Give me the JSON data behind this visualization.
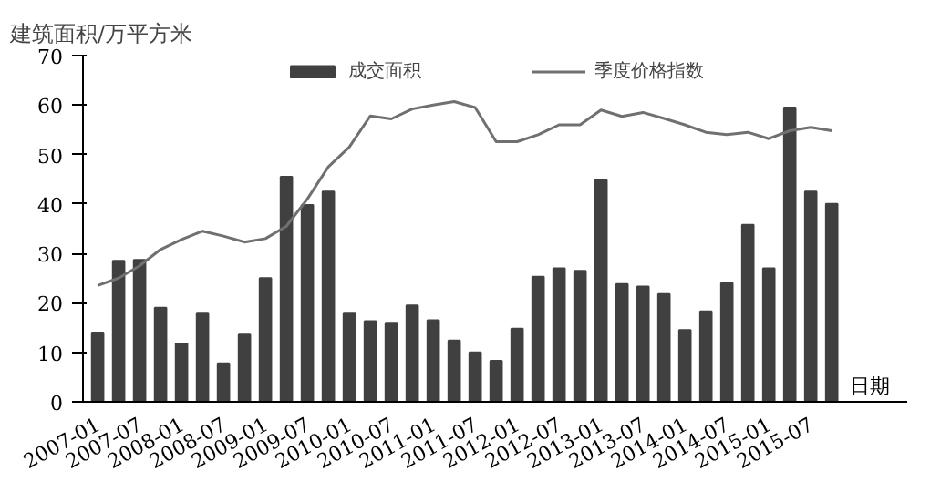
{
  "chart_data": {
    "type": "bar",
    "ylabel": "建筑面积/万平方米",
    "xlabel": "日期",
    "categories": [
      "2007-01",
      null,
      "2007-07",
      null,
      "2008-01",
      null,
      "2008-07",
      null,
      "2009-01",
      null,
      "2009-07",
      null,
      "2010-01",
      null,
      "2010-07",
      null,
      "2011-01",
      null,
      "2011-07",
      null,
      "2012-01",
      null,
      "2012-07",
      null,
      "2013-01",
      null,
      "2013-07",
      null,
      "2014-01",
      null,
      "2014-07",
      null,
      "2015-01",
      null,
      "2015-07",
      null
    ],
    "series": [
      {
        "name": "成交面积",
        "color": "#404040",
        "values": [
          14,
          28.5,
          28.7,
          19,
          11.8,
          18,
          7.8,
          13.6,
          25,
          45.5,
          39.8,
          42.5,
          18,
          16.3,
          16,
          19.5,
          16.5,
          12.4,
          10,
          8.3,
          14.8,
          25.3,
          27,
          26.5,
          44.8,
          23.8,
          23.3,
          21.8,
          14.5,
          18.3,
          24,
          35.8,
          27,
          59.5,
          42.5,
          40
        ]
      },
      {
        "name": "季度价格指数",
        "type": "line",
        "color": "#707070",
        "values": [
          23.5,
          25,
          27.5,
          30.8,
          32.8,
          34.5,
          33.5,
          32.3,
          33,
          35.5,
          41,
          47.5,
          51.5,
          57.8,
          57.2,
          59.2,
          60,
          60.7,
          59.5,
          52.6,
          52.6,
          54,
          56,
          56,
          59,
          57.7,
          58.5,
          57.3,
          56,
          54.5,
          54,
          54.5,
          53.2,
          54.8,
          55.5,
          54.8
        ]
      }
    ],
    "ylim": [
      0,
      70
    ],
    "yticks": [
      0,
      10,
      20,
      30,
      40,
      50,
      60,
      70
    ],
    "grid": false,
    "legend": "top"
  }
}
